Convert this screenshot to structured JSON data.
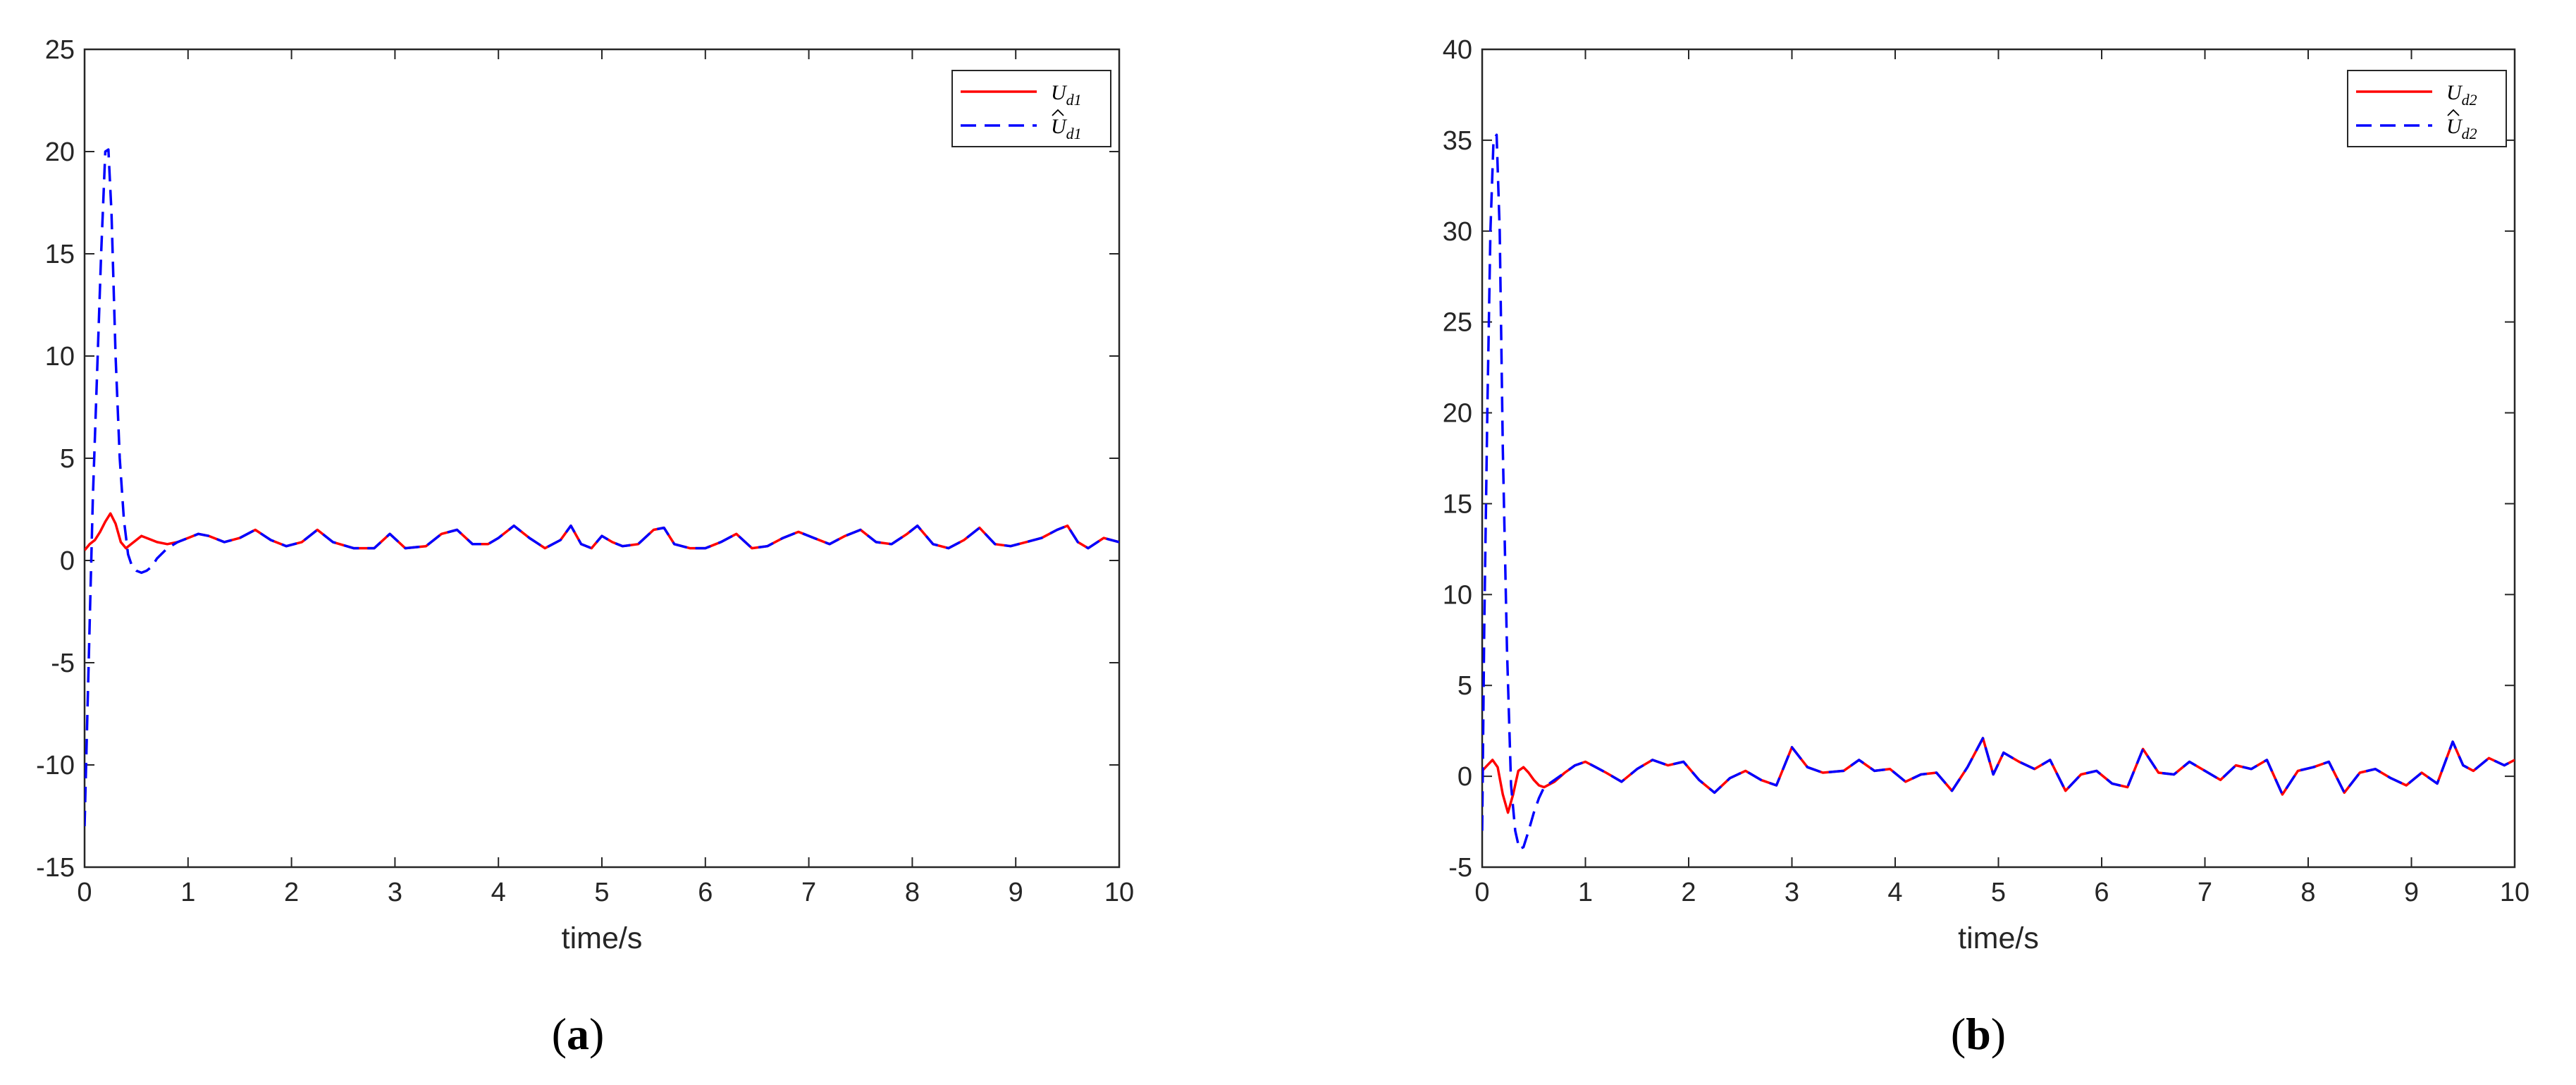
{
  "chart_data": [
    {
      "type": "line",
      "caption": "a",
      "xlabel": "time/s",
      "ylabel": "",
      "xlim": [
        0,
        10
      ],
      "ylim": [
        -15,
        25
      ],
      "xticks": [
        0,
        1,
        2,
        3,
        4,
        5,
        6,
        7,
        8,
        9,
        10
      ],
      "yticks": [
        -15,
        -10,
        -5,
        0,
        5,
        10,
        15,
        20,
        25
      ],
      "legend_position": "top-right",
      "grid": false,
      "legend": [
        {
          "base": "U",
          "hat": false,
          "sub": "d1"
        },
        {
          "base": "U",
          "hat": true,
          "sub": "d1"
        }
      ],
      "series": [
        {
          "color": "#ff0000",
          "dash": "solid",
          "x": [
            0,
            0.05,
            0.1,
            0.15,
            0.2,
            0.25,
            0.3,
            0.35,
            0.4,
            0.45,
            0.5,
            0.55,
            0.6,
            0.7,
            0.8,
            0.9,
            1.0,
            1.1,
            1.2,
            1.35,
            1.5,
            1.65,
            1.8,
            1.95,
            2.1,
            2.25,
            2.4,
            2.6,
            2.8,
            2.95,
            3.1,
            3.3,
            3.45,
            3.6,
            3.75,
            3.9,
            4.0,
            4.15,
            4.3,
            4.45,
            4.6,
            4.7,
            4.8,
            4.9,
            5.0,
            5.1,
            5.2,
            5.35,
            5.5,
            5.6,
            5.7,
            5.85,
            6.0,
            6.15,
            6.3,
            6.45,
            6.6,
            6.75,
            6.9,
            7.05,
            7.2,
            7.35,
            7.5,
            7.65,
            7.8,
            7.95,
            8.05,
            8.2,
            8.35,
            8.5,
            8.65,
            8.8,
            8.95,
            9.1,
            9.25,
            9.4,
            9.5,
            9.6,
            9.7,
            9.85,
            10.0
          ],
          "y": [
            0.5,
            0.8,
            1.0,
            1.4,
            1.9,
            2.3,
            1.8,
            0.9,
            0.6,
            0.8,
            1.0,
            1.2,
            1.1,
            0.9,
            0.8,
            0.9,
            1.1,
            1.3,
            1.2,
            0.9,
            1.1,
            1.5,
            1.0,
            0.7,
            0.9,
            1.5,
            0.9,
            0.6,
            0.6,
            1.3,
            0.6,
            0.7,
            1.3,
            1.5,
            0.8,
            0.8,
            1.1,
            1.7,
            1.1,
            0.6,
            1.0,
            1.7,
            0.8,
            0.6,
            1.2,
            0.9,
            0.7,
            0.8,
            1.5,
            1.6,
            0.8,
            0.6,
            0.6,
            0.9,
            1.3,
            0.6,
            0.7,
            1.1,
            1.4,
            1.1,
            0.8,
            1.2,
            1.5,
            0.9,
            0.8,
            1.3,
            1.7,
            0.8,
            0.6,
            1.0,
            1.6,
            0.8,
            0.7,
            0.9,
            1.1,
            1.5,
            1.7,
            0.9,
            0.6,
            1.1,
            0.9
          ]
        },
        {
          "color": "#0000ff",
          "dash": "dashed",
          "x": [
            0,
            0.02,
            0.05,
            0.08,
            0.12,
            0.16,
            0.2,
            0.23,
            0.26,
            0.3,
            0.34,
            0.38,
            0.42,
            0.46,
            0.5,
            0.55,
            0.6,
            0.65,
            0.7,
            0.8,
            0.9,
            1.0,
            1.1,
            1.2,
            1.35,
            1.5,
            1.65,
            1.8,
            1.95,
            2.1,
            2.25,
            2.4,
            2.6,
            2.8,
            2.95,
            3.1,
            3.3,
            3.45,
            3.6,
            3.75,
            3.9,
            4.0,
            4.15,
            4.3,
            4.45,
            4.6,
            4.7,
            4.8,
            4.9,
            5.0,
            5.1,
            5.2,
            5.35,
            5.5,
            5.6,
            5.7,
            5.85,
            6.0,
            6.15,
            6.3,
            6.45,
            6.6,
            6.75,
            6.9,
            7.05,
            7.2,
            7.35,
            7.5,
            7.65,
            7.8,
            7.95,
            8.05,
            8.2,
            8.35,
            8.5,
            8.65,
            8.8,
            8.95,
            9.1,
            9.25,
            9.4,
            9.5,
            9.6,
            9.7,
            9.85,
            10.0
          ],
          "y": [
            -13,
            -9,
            -3,
            3,
            9,
            15,
            20,
            20.1,
            17,
            10,
            5,
            2,
            0.3,
            -0.3,
            -0.5,
            -0.6,
            -0.5,
            -0.3,
            0.1,
            0.6,
            0.9,
            1.1,
            1.3,
            1.2,
            0.9,
            1.1,
            1.5,
            1.0,
            0.7,
            0.9,
            1.5,
            0.9,
            0.6,
            0.6,
            1.3,
            0.6,
            0.7,
            1.3,
            1.5,
            0.8,
            0.8,
            1.1,
            1.7,
            1.1,
            0.6,
            1.0,
            1.7,
            0.8,
            0.6,
            1.2,
            0.9,
            0.7,
            0.8,
            1.5,
            1.6,
            0.8,
            0.6,
            0.6,
            0.9,
            1.3,
            0.6,
            0.7,
            1.1,
            1.4,
            1.1,
            0.8,
            1.2,
            1.5,
            0.9,
            0.8,
            1.3,
            1.7,
            0.8,
            0.6,
            1.0,
            1.6,
            0.8,
            0.7,
            0.9,
            1.1,
            1.5,
            1.7,
            0.9,
            0.6,
            1.1,
            0.9
          ]
        }
      ]
    },
    {
      "type": "line",
      "caption": "b",
      "xlabel": "time/s",
      "ylabel": "",
      "xlim": [
        0,
        10
      ],
      "ylim": [
        -5,
        40
      ],
      "xticks": [
        0,
        1,
        2,
        3,
        4,
        5,
        6,
        7,
        8,
        9,
        10
      ],
      "yticks": [
        -5,
        0,
        5,
        10,
        15,
        20,
        25,
        30,
        35,
        40
      ],
      "legend_position": "top-right",
      "grid": false,
      "legend": [
        {
          "base": "U",
          "hat": false,
          "sub": "d2"
        },
        {
          "base": "U",
          "hat": true,
          "sub": "d2"
        }
      ],
      "series": [
        {
          "color": "#ff0000",
          "dash": "solid",
          "x": [
            0,
            0.05,
            0.1,
            0.15,
            0.2,
            0.25,
            0.3,
            0.35,
            0.4,
            0.45,
            0.5,
            0.55,
            0.6,
            0.7,
            0.8,
            0.9,
            1.0,
            1.1,
            1.2,
            1.35,
            1.5,
            1.65,
            1.8,
            1.95,
            2.1,
            2.25,
            2.4,
            2.55,
            2.7,
            2.85,
            3.0,
            3.15,
            3.3,
            3.5,
            3.65,
            3.8,
            3.95,
            4.1,
            4.25,
            4.4,
            4.55,
            4.7,
            4.85,
            4.95,
            5.05,
            5.2,
            5.35,
            5.5,
            5.65,
            5.8,
            5.95,
            6.1,
            6.25,
            6.4,
            6.55,
            6.7,
            6.85,
            7.0,
            7.15,
            7.3,
            7.45,
            7.6,
            7.75,
            7.9,
            8.05,
            8.2,
            8.35,
            8.5,
            8.65,
            8.8,
            8.95,
            9.1,
            9.25,
            9.4,
            9.5,
            9.6,
            9.75,
            9.9,
            10.0
          ],
          "y": [
            0.3,
            0.6,
            0.9,
            0.5,
            -1.0,
            -2.0,
            -1.0,
            0.3,
            0.5,
            0.2,
            -0.2,
            -0.5,
            -0.6,
            -0.3,
            0.2,
            0.6,
            0.8,
            0.5,
            0.2,
            -0.3,
            0.4,
            0.9,
            0.6,
            0.8,
            -0.2,
            -0.9,
            -0.1,
            0.3,
            -0.2,
            -0.5,
            1.6,
            0.5,
            0.2,
            0.3,
            0.9,
            0.3,
            0.4,
            -0.3,
            0.1,
            0.2,
            -0.8,
            0.5,
            2.1,
            0.1,
            1.3,
            0.8,
            0.4,
            0.9,
            -0.8,
            0.1,
            0.3,
            -0.4,
            -0.6,
            1.5,
            0.2,
            0.1,
            0.8,
            0.3,
            -0.2,
            0.6,
            0.4,
            0.9,
            -1.0,
            0.3,
            0.5,
            0.8,
            -0.9,
            0.2,
            0.4,
            -0.1,
            -0.5,
            0.2,
            -0.4,
            1.9,
            0.6,
            0.3,
            1.0,
            0.6,
            0.9
          ],
          "x_note": ""
        },
        {
          "color": "#0000ff",
          "dash": "dashed",
          "x": [
            0,
            0.02,
            0.05,
            0.08,
            0.11,
            0.14,
            0.17,
            0.2,
            0.24,
            0.28,
            0.32,
            0.36,
            0.4,
            0.45,
            0.5,
            0.55,
            0.6,
            0.7,
            0.8,
            0.9,
            1.0,
            1.1,
            1.2,
            1.35,
            1.5,
            1.65,
            1.8,
            1.95,
            2.1,
            2.25,
            2.4,
            2.55,
            2.7,
            2.85,
            3.0,
            3.15,
            3.3,
            3.5,
            3.65,
            3.8,
            3.95,
            4.1,
            4.25,
            4.4,
            4.55,
            4.7,
            4.85,
            4.95,
            5.05,
            5.2,
            5.35,
            5.5,
            5.65,
            5.8,
            5.95,
            6.1,
            6.25,
            6.4,
            6.55,
            6.7,
            6.85,
            7.0,
            7.15,
            7.3,
            7.45,
            7.6,
            7.75,
            7.9,
            8.05,
            8.2,
            8.35,
            8.5,
            8.65,
            8.8,
            8.95,
            9.1,
            9.25,
            9.4,
            9.5,
            9.6,
            9.75,
            9.9,
            10.0
          ],
          "y": [
            -3,
            8,
            20,
            30,
            35,
            35.3,
            30,
            18,
            7,
            -0.5,
            -3,
            -4,
            -3.9,
            -3,
            -2,
            -1.2,
            -0.6,
            -0.2,
            0.2,
            0.6,
            0.8,
            0.5,
            0.2,
            -0.3,
            0.4,
            0.9,
            0.6,
            0.8,
            -0.2,
            -0.9,
            -0.1,
            0.3,
            -0.2,
            -0.5,
            1.6,
            0.5,
            0.2,
            0.3,
            0.9,
            0.3,
            0.4,
            -0.3,
            0.1,
            0.2,
            -0.8,
            0.5,
            2.1,
            0.1,
            1.3,
            0.8,
            0.4,
            0.9,
            -0.8,
            0.1,
            0.3,
            -0.4,
            -0.6,
            1.5,
            0.2,
            0.1,
            0.8,
            0.3,
            -0.2,
            0.6,
            0.4,
            0.9,
            -1.0,
            0.3,
            0.5,
            0.8,
            -0.9,
            0.2,
            0.4,
            -0.1,
            -0.5,
            0.2,
            -0.4,
            1.9,
            0.6,
            0.3,
            1.0,
            0.6,
            0.9
          ]
        }
      ]
    }
  ]
}
